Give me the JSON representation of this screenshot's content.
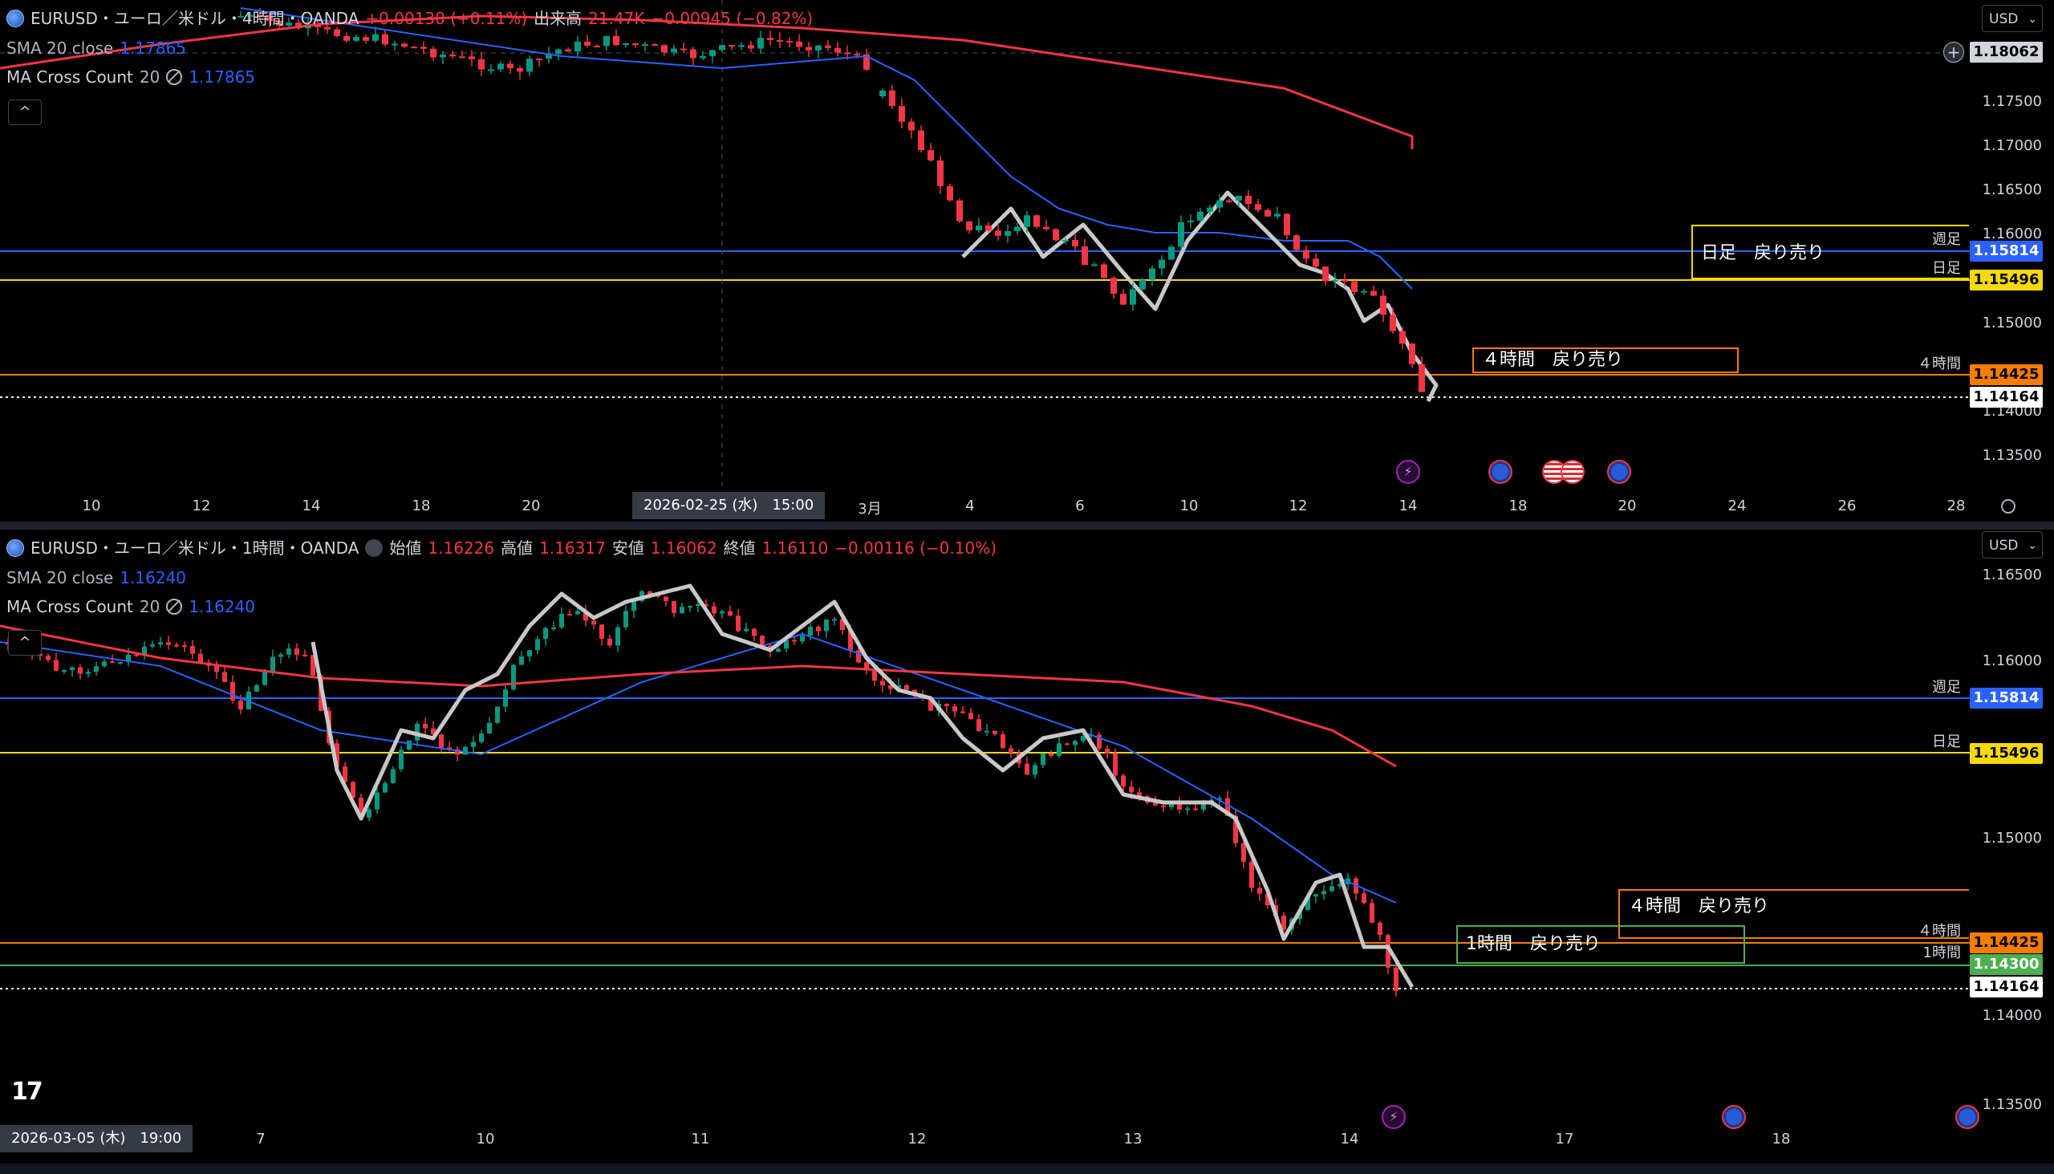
{
  "pane_top": {
    "symbol_title": "EURUSD・ユーロ／米ドル・4時間・OANDA",
    "change": "+0.00130 (+0.11%)",
    "volume_label": "出来高",
    "volume_value": "21.47K",
    "change2": "−0.00945 (−0.82%)",
    "sma_label": "SMA 20 close",
    "sma_value": "1.17865",
    "macc_label": "MA Cross Count",
    "macc_period": "20",
    "macc_value": "1.17865",
    "collapse_icon": "^",
    "currency": "USD",
    "crosshair_price": "1.18062",
    "price_ticks": [
      "1.17500",
      "1.17000",
      "1.16500",
      "1.16000",
      "1.15000",
      "1.14000",
      "1.13500"
    ],
    "tags": {
      "weekly_label": "週足",
      "weekly_price": "1.15814",
      "daily_label": "日足",
      "daily_price": "1.15496",
      "h4_label": "４時間",
      "h4_price": "1.14425",
      "last_price": "1.14164"
    },
    "zones": {
      "daily": "日足　戻り売り",
      "h4": "４時間　戻り売り"
    },
    "x_ticks": [
      "10",
      "12",
      "14",
      "18",
      "20",
      "3月",
      "4",
      "6",
      "10",
      "12",
      "14",
      "18",
      "20",
      "24",
      "26",
      "28"
    ],
    "crosshair_time": "2026-02-25 (水)　15:00"
  },
  "pane_bottom": {
    "symbol_title": "EURUSD・ユーロ／米ドル・1時間・OANDA",
    "open_label": "始値",
    "open": "1.16226",
    "high_label": "高値",
    "high": "1.16317",
    "low_label": "安値",
    "low": "1.16062",
    "close_label": "終値",
    "close": "1.16110",
    "change": "−0.00116 (−0.10%)",
    "sma_label": "SMA 20 close",
    "sma_value": "1.16240",
    "macc_label": "MA Cross Count",
    "macc_period": "20",
    "macc_value": "1.16240",
    "collapse_icon": "^",
    "currency": "USD",
    "price_ticks": [
      "1.16500",
      "1.16000",
      "1.15000",
      "1.14000",
      "1.13500"
    ],
    "tags": {
      "weekly_label": "週足",
      "weekly_price": "1.15814",
      "daily_label": "日足",
      "daily_price": "1.15496",
      "h4_label": "４時間",
      "h4_price": "1.14425",
      "h1_label": "1時間",
      "h1_price": "1.14300",
      "last_price": "1.14164"
    },
    "zones": {
      "h4": "４時間　戻り売り",
      "h1": "1時間　戻り売り"
    },
    "x_ticks": [
      "7",
      "10",
      "11",
      "12",
      "13",
      "14",
      "17",
      "18"
    ],
    "crosshair_time": "2026-03-05 (木)　19:00",
    "logo": "17"
  },
  "colors": {
    "up": "#089981",
    "down": "#f23645",
    "sma": "#2962ff",
    "slow_ma": "#f23645",
    "weekly": "#2962ff",
    "daily": "#f5d90a",
    "h4": "#f57c00",
    "h1": "#4caf50"
  }
}
